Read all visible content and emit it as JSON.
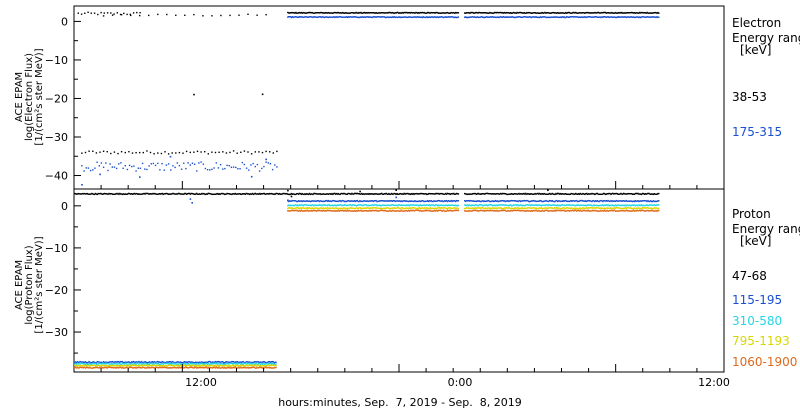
{
  "chart_data": [
    {
      "type": "scatter",
      "panel": "top",
      "ylabel_lines": [
        "ACE EPAM",
        "log(Electron Flux)",
        "[1/(cm²s ster MeV)]"
      ],
      "ylim": [
        -43.5,
        4
      ],
      "yticks": [
        0,
        -10,
        -20,
        -30,
        -40
      ],
      "ytick_labels": [
        "0",
        "−10",
        "−20",
        "−30",
        "−40"
      ],
      "legend_title": [
        "Electron",
        "Energy range",
        "[keV]"
      ],
      "series": [
        {
          "name": "38-53",
          "color": "#000000",
          "segments": [
            {
              "from": 0.2,
              "to": 3.8,
              "y": 2.2,
              "step": 0.18,
              "jitter": 0.35
            },
            {
              "from": 1.6,
              "to": 11.0,
              "y": 1.8,
              "step": 0.5,
              "jitter": 0.25
            },
            {
              "from": 0.4,
              "to": 11.2,
              "y": -33.8,
              "step": 0.2,
              "jitter": 0.4
            },
            {
              "from": 11.8,
              "to": 21.3,
              "y": 2.4,
              "step": 0.05,
              "jitter": 0.1
            },
            {
              "from": 21.6,
              "to": 32.4,
              "y": 2.4,
              "step": 0.05,
              "jitter": 0.1
            }
          ],
          "extra_points": [
            [
              6.6,
              -18.8
            ],
            [
              10.4,
              -18.7
            ]
          ]
        },
        {
          "name": "175-315",
          "color": "#1a4fd0",
          "segments": [
            {
              "from": 0.4,
              "to": 11.2,
              "y": -37.5,
              "step": 0.12,
              "jitter": 1.2
            },
            {
              "from": 11.8,
              "to": 21.3,
              "y": 1.3,
              "step": 0.05,
              "jitter": 0.1
            },
            {
              "from": 21.6,
              "to": 32.4,
              "y": 1.3,
              "step": 0.05,
              "jitter": 0.1
            }
          ],
          "extra_points": [
            [
              0.4,
              -42.2
            ],
            [
              1.4,
              -39.5
            ],
            [
              3.6,
              -40.2
            ],
            [
              9.8,
              -40.1
            ],
            [
              5.3,
              -34.9
            ],
            [
              10.6,
              -35.6
            ]
          ]
        }
      ]
    },
    {
      "type": "scatter",
      "panel": "bottom",
      "ylabel_lines": [
        "ACE EPAM",
        "log(Proton Flux)",
        "[1/(cm²s ster MeV)]"
      ],
      "ylim": [
        -39.5,
        4
      ],
      "yticks": [
        0,
        -10,
        -20,
        -30
      ],
      "ytick_labels": [
        "0",
        "−10",
        "−20",
        "−30"
      ],
      "legend_title": [
        "Proton",
        "Energy range",
        "[keV]"
      ],
      "series": [
        {
          "name": "47-68",
          "color": "#000000",
          "segments": [
            {
              "from": 0.0,
              "to": 21.3,
              "y": 3.0,
              "step": 0.05,
              "jitter": 0.12
            },
            {
              "from": 21.6,
              "to": 32.4,
              "y": 3.0,
              "step": 0.05,
              "jitter": 0.12
            }
          ],
          "extra_points": [
            [
              11.8,
              3.8
            ],
            [
              12.0,
              2.4
            ],
            [
              15.8,
              3.6
            ],
            [
              17.8,
              3.9
            ],
            [
              26.2,
              3.9
            ]
          ]
        },
        {
          "name": "115-195",
          "color": "#1a4fd0",
          "segments": [
            {
              "from": 0.0,
              "to": 11.2,
              "y": -37.0,
              "step": 0.05,
              "jitter": 0.15
            },
            {
              "from": 11.8,
              "to": 21.3,
              "y": 1.3,
              "step": 0.05,
              "jitter": 0.12
            },
            {
              "from": 21.6,
              "to": 32.4,
              "y": 1.3,
              "step": 0.05,
              "jitter": 0.12
            }
          ],
          "extra_points": [
            [
              6.4,
              1.8
            ],
            [
              6.5,
              0.9
            ],
            [
              11.8,
              1.5
            ],
            [
              17.8,
              2.2
            ]
          ]
        },
        {
          "name": "310-580",
          "color": "#25d5e8",
          "segments": [
            {
              "from": 0.0,
              "to": 11.2,
              "y": -37.4,
              "step": 0.05,
              "jitter": 0.15
            },
            {
              "from": 11.8,
              "to": 21.3,
              "y": 0.3,
              "step": 0.05,
              "jitter": 0.12
            },
            {
              "from": 21.6,
              "to": 32.4,
              "y": 0.3,
              "step": 0.05,
              "jitter": 0.12
            }
          ],
          "extra_points": []
        },
        {
          "name": "795-1193",
          "color": "#d8d800",
          "segments": [
            {
              "from": 0.0,
              "to": 11.2,
              "y": -37.8,
              "step": 0.05,
              "jitter": 0.12
            },
            {
              "from": 11.8,
              "to": 21.3,
              "y": -0.4,
              "step": 0.05,
              "jitter": 0.12
            },
            {
              "from": 21.6,
              "to": 32.4,
              "y": -0.4,
              "step": 0.05,
              "jitter": 0.12
            }
          ],
          "extra_points": []
        },
        {
          "name": "1060-1900",
          "color": "#e06a1c",
          "segments": [
            {
              "from": 0.0,
              "to": 11.2,
              "y": -38.3,
              "step": 0.05,
              "jitter": 0.12
            },
            {
              "from": 11.8,
              "to": 21.3,
              "y": -1.0,
              "step": 0.05,
              "jitter": 0.12
            },
            {
              "from": 21.6,
              "to": 32.4,
              "y": -1.0,
              "step": 0.05,
              "jitter": 0.12
            }
          ],
          "extra_points": []
        }
      ]
    }
  ],
  "x_axis": {
    "range_hours": [
      0,
      36
    ],
    "major_ticks": [
      6,
      18,
      30
    ],
    "minor_step_hours": 1.5,
    "tick_labels": [
      "12:00",
      "0:00",
      "12:00"
    ],
    "xlabel": "hours:minutes, Sep.  7, 2019 - Sep.  8, 2019"
  }
}
